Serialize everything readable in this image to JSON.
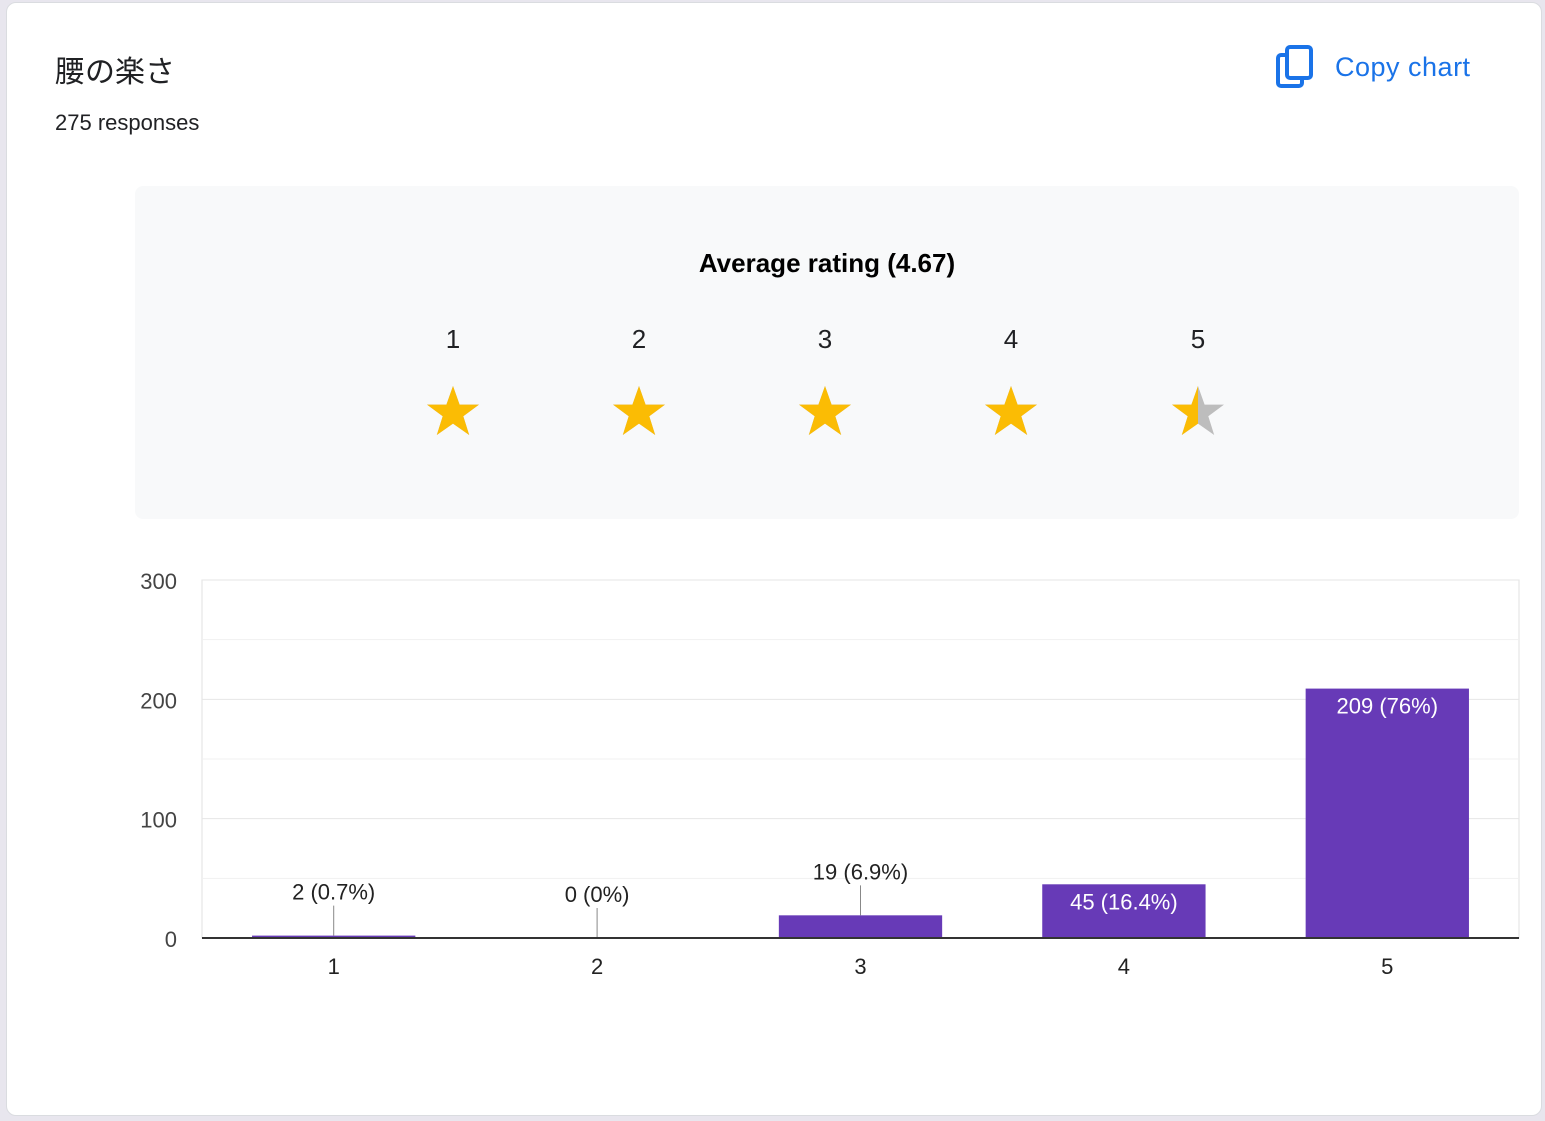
{
  "header": {
    "title": "腰の楽さ",
    "responses": "275 responses",
    "copy_label": "Copy chart"
  },
  "rating": {
    "label": "Average rating (4.67)",
    "average": 4.67,
    "stars": [
      {
        "num": "1",
        "fill": 1
      },
      {
        "num": "2",
        "fill": 1
      },
      {
        "num": "3",
        "fill": 1
      },
      {
        "num": "4",
        "fill": 1
      },
      {
        "num": "5",
        "fill": 0.5
      }
    ]
  },
  "colors": {
    "accent": "#1a73e8",
    "bar": "#673ab7",
    "star_filled": "#fbbc04",
    "star_empty": "#bdbdbd"
  },
  "chart_data": {
    "type": "bar",
    "categories": [
      "1",
      "2",
      "3",
      "4",
      "5"
    ],
    "values": [
      2,
      0,
      19,
      45,
      209
    ],
    "labels": [
      "2 (0.7%)",
      "0 (0%)",
      "19 (6.9%)",
      "45 (16.4%)",
      "209 (76%)"
    ],
    "ylim": [
      0,
      300
    ],
    "yticks": [
      0,
      100,
      200,
      300
    ],
    "grid": true
  }
}
